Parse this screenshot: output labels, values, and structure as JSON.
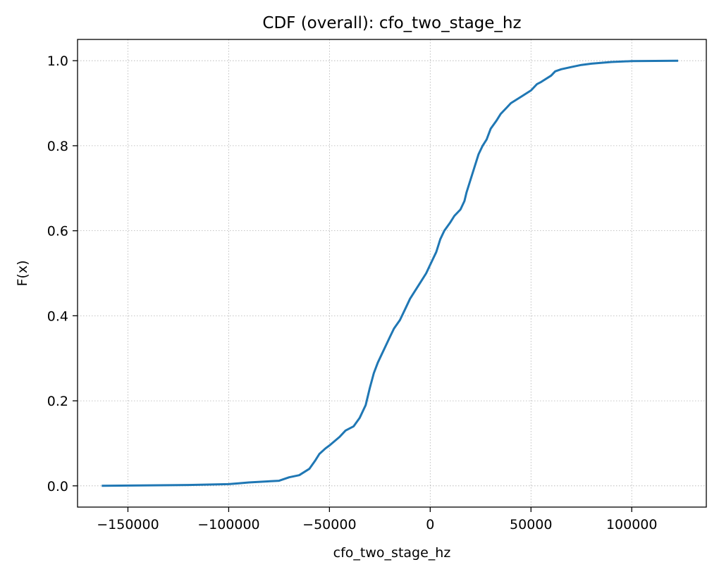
{
  "chart_data": {
    "type": "line",
    "title": "CDF (overall): cfo_two_stage_hz",
    "xlabel": "cfo_two_stage_hz",
    "ylabel": "F(x)",
    "xlim": [
      -175000,
      137000
    ],
    "ylim": [
      -0.05,
      1.05
    ],
    "xticks": [
      -150000,
      -100000,
      -50000,
      0,
      50000,
      100000
    ],
    "xtick_labels": [
      "−150000",
      "−100000",
      "−50000",
      "0",
      "50000",
      "100000"
    ],
    "yticks": [
      0.0,
      0.2,
      0.4,
      0.6,
      0.8,
      1.0
    ],
    "ytick_labels": [
      "0.0",
      "0.2",
      "0.4",
      "0.6",
      "0.8",
      "1.0"
    ],
    "grid": true,
    "color": "#1f77b4",
    "series": [
      {
        "x": [
          -163000,
          -120000,
          -100000,
          -95000,
          -90000,
          -75000,
          -70000,
          -65000,
          -60000,
          -57000,
          -55000,
          -52000,
          -50000,
          -45000,
          -42000,
          -38000,
          -35000,
          -32000,
          -30000,
          -28000,
          -26000,
          -24000,
          -22000,
          -20000,
          -18000,
          -15000,
          -12000,
          -10000,
          -8000,
          -6000,
          -4000,
          -2000,
          0,
          3000,
          5000,
          7000,
          10000,
          12000,
          15000,
          17000,
          18000,
          20000,
          22000,
          24000,
          26000,
          28000,
          30000,
          33000,
          35000,
          38000,
          40000,
          45000,
          50000,
          53000,
          55000,
          60000,
          62000,
          65000,
          70000,
          75000,
          80000,
          90000,
          100000,
          123000
        ],
        "y": [
          0.0,
          0.002,
          0.004,
          0.006,
          0.008,
          0.012,
          0.02,
          0.025,
          0.04,
          0.06,
          0.075,
          0.088,
          0.095,
          0.115,
          0.13,
          0.14,
          0.16,
          0.19,
          0.23,
          0.265,
          0.29,
          0.31,
          0.33,
          0.35,
          0.37,
          0.39,
          0.42,
          0.44,
          0.455,
          0.47,
          0.485,
          0.5,
          0.52,
          0.55,
          0.58,
          0.6,
          0.62,
          0.635,
          0.65,
          0.67,
          0.69,
          0.72,
          0.75,
          0.78,
          0.8,
          0.815,
          0.84,
          0.86,
          0.875,
          0.89,
          0.9,
          0.915,
          0.93,
          0.945,
          0.95,
          0.965,
          0.975,
          0.98,
          0.985,
          0.99,
          0.993,
          0.997,
          0.999,
          1.0
        ]
      }
    ]
  }
}
